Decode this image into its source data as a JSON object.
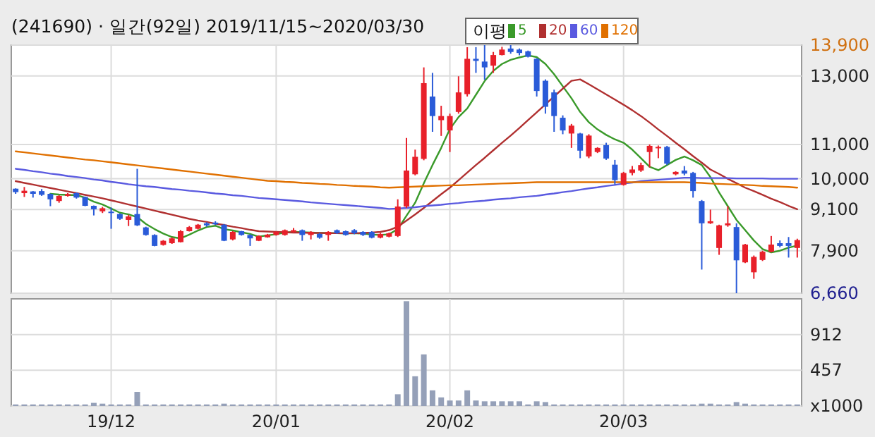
{
  "chart_data": [
    {
      "type": "candlestick",
      "title": "(241690) · 일간(92일) 2019/11/15~2020/03/30",
      "legend_title": "이평",
      "legend": "top",
      "grid": true,
      "tick_labels": "y",
      "categories": [
        null,
        null,
        null,
        null,
        null,
        null,
        null,
        null,
        null,
        null,
        null,
        null,
        null,
        null,
        null,
        null,
        null,
        null,
        null,
        null,
        null,
        null,
        null,
        null,
        null,
        null,
        null,
        null,
        null,
        null,
        null,
        null,
        null,
        null,
        null,
        null,
        null,
        null,
        null,
        null,
        null,
        null,
        null,
        null,
        null,
        null,
        null,
        null,
        null,
        null,
        null,
        null,
        null,
        null,
        null,
        null,
        null,
        null,
        null,
        null,
        null,
        null,
        null,
        null,
        null,
        null,
        null,
        null,
        null,
        null,
        null,
        null,
        null,
        null,
        null,
        null,
        null,
        null,
        null,
        null,
        null,
        null,
        null,
        null,
        null,
        null,
        null,
        null,
        null,
        null,
        null
      ],
      "ylim": [
        6660,
        13900
      ],
      "yticks": [
        {
          "value": 6660,
          "label": "6,660"
        },
        {
          "value": 7900,
          "label": "7,900"
        },
        {
          "value": 9100,
          "label": "9,100"
        },
        {
          "value": 10000,
          "label": "10,000"
        },
        {
          "value": 11000,
          "label": "11,000"
        },
        {
          "value": 13000,
          "label": "13,000"
        },
        {
          "value": 13900,
          "label": "13,900"
        }
      ],
      "ohlc": [
        [
          9710,
          9720,
          9560,
          9610
        ],
        [
          9580,
          9760,
          9470,
          9650
        ],
        [
          9630,
          9640,
          9450,
          9560
        ],
        [
          9640,
          9700,
          9500,
          9530
        ],
        [
          9560,
          9570,
          9200,
          9400
        ],
        [
          9350,
          9520,
          9300,
          9500
        ],
        [
          9500,
          9580,
          9480,
          9550
        ],
        [
          9580,
          9600,
          9420,
          9450
        ],
        [
          9470,
          9480,
          9200,
          9210
        ],
        [
          9210,
          9220,
          8930,
          9110
        ],
        [
          9050,
          9180,
          9000,
          9140
        ],
        [
          9040,
          9160,
          8540,
          9000
        ],
        [
          8970,
          8990,
          8800,
          8830
        ],
        [
          8800,
          8950,
          8620,
          8900
        ],
        [
          8970,
          10290,
          8620,
          8640
        ],
        [
          8580,
          8600,
          8340,
          8360
        ],
        [
          8360,
          8380,
          8030,
          8040
        ],
        [
          8070,
          8210,
          8050,
          8190
        ],
        [
          8120,
          8290,
          8100,
          8260
        ],
        [
          8150,
          8500,
          8140,
          8470
        ],
        [
          8470,
          8620,
          8460,
          8590
        ],
        [
          8540,
          8680,
          8520,
          8660
        ],
        [
          8700,
          8730,
          8600,
          8640
        ],
        [
          8720,
          8760,
          8650,
          8670
        ],
        [
          8660,
          8680,
          8180,
          8190
        ],
        [
          8230,
          8470,
          8200,
          8450
        ],
        [
          8470,
          8480,
          8340,
          8360
        ],
        [
          8360,
          8380,
          8040,
          8260
        ],
        [
          8190,
          8350,
          8180,
          8330
        ],
        [
          8290,
          8390,
          8280,
          8370
        ],
        [
          8360,
          8470,
          8340,
          8450
        ],
        [
          8360,
          8520,
          8340,
          8500
        ],
        [
          8450,
          8560,
          8430,
          8500
        ],
        [
          8500,
          8520,
          8190,
          8360
        ],
        [
          8360,
          8470,
          8230,
          8450
        ],
        [
          8390,
          8420,
          8250,
          8280
        ],
        [
          8360,
          8470,
          8190,
          8450
        ],
        [
          8500,
          8520,
          8390,
          8410
        ],
        [
          8470,
          8490,
          8340,
          8360
        ],
        [
          8500,
          8530,
          8380,
          8410
        ],
        [
          8450,
          8470,
          8330,
          8360
        ],
        [
          8450,
          8470,
          8260,
          8280
        ],
        [
          8280,
          8420,
          8260,
          8390
        ],
        [
          8310,
          8430,
          8290,
          8410
        ],
        [
          8330,
          9400,
          8300,
          9190
        ],
        [
          9190,
          11190,
          9150,
          10240
        ],
        [
          10130,
          10850,
          10100,
          10640
        ],
        [
          10580,
          13250,
          10540,
          12790
        ],
        [
          12400,
          13090,
          11370,
          11830
        ],
        [
          11710,
          12130,
          11250,
          11830
        ],
        [
          11410,
          11900,
          10780,
          11830
        ],
        [
          11950,
          12990,
          11900,
          12520
        ],
        [
          12470,
          13840,
          12400,
          13500
        ],
        [
          13500,
          13840,
          13090,
          13440
        ],
        [
          13420,
          13900,
          12890,
          13250
        ],
        [
          13300,
          13700,
          13090,
          13610
        ],
        [
          13610,
          13850,
          13600,
          13770
        ],
        [
          13800,
          13900,
          13650,
          13700
        ],
        [
          13770,
          13800,
          13600,
          13670
        ],
        [
          13720,
          13740,
          13540,
          13560
        ],
        [
          13500,
          13520,
          12400,
          12560
        ],
        [
          12860,
          12900,
          11900,
          12100
        ],
        [
          12520,
          12600,
          11370,
          11830
        ],
        [
          11780,
          11850,
          11300,
          11410
        ],
        [
          11320,
          11600,
          10900,
          11550
        ],
        [
          11320,
          11340,
          10600,
          10820
        ],
        [
          10650,
          11300,
          10600,
          11260
        ],
        [
          10780,
          10920,
          10750,
          10900
        ],
        [
          10980,
          11050,
          10550,
          10590
        ],
        [
          10410,
          10550,
          9830,
          9960
        ],
        [
          9820,
          10200,
          9800,
          10170
        ],
        [
          10170,
          10370,
          10100,
          10270
        ],
        [
          10240,
          10470,
          10200,
          10400
        ],
        [
          10780,
          11000,
          10330,
          10960
        ],
        [
          10900,
          10970,
          10600,
          10930
        ],
        [
          10930,
          10960,
          10400,
          10440
        ],
        [
          10130,
          10220,
          10100,
          10200
        ],
        [
          10240,
          10370,
          10100,
          10150
        ],
        [
          10170,
          10200,
          9450,
          9640
        ],
        [
          9350,
          9380,
          7350,
          8700
        ],
        [
          8700,
          9100,
          8680,
          8760
        ],
        [
          7980,
          8660,
          7780,
          8640
        ],
        [
          8640,
          9200,
          8600,
          8700
        ],
        [
          8590,
          8700,
          6660,
          7620
        ],
        [
          7560,
          8100,
          7540,
          8080
        ],
        [
          7270,
          7760,
          7080,
          7720
        ],
        [
          7630,
          7900,
          7600,
          7870
        ],
        [
          7870,
          8330,
          7850,
          8080
        ],
        [
          8120,
          8200,
          8000,
          8040
        ],
        [
          8120,
          8300,
          7700,
          8040
        ],
        [
          7980,
          8250,
          7700,
          8210
        ]
      ],
      "series": [
        {
          "name": "5",
          "type": "line",
          "color": "#3a9a2a",
          "values": [
            null,
            null,
            null,
            null,
            9560,
            9540,
            9530,
            9520,
            9450,
            9330,
            9250,
            9130,
            9010,
            8960,
            8880,
            8680,
            8530,
            8400,
            8300,
            8260,
            8370,
            8490,
            8590,
            8630,
            8530,
            8490,
            8440,
            8390,
            8310,
            8350,
            8380,
            8430,
            8450,
            8440,
            8430,
            8420,
            8420,
            8410,
            8400,
            8410,
            8400,
            8370,
            8360,
            8380,
            8530,
            8920,
            9300,
            9870,
            10400,
            10900,
            11450,
            11800,
            12050,
            12450,
            12850,
            13150,
            13350,
            13470,
            13540,
            13600,
            13550,
            13350,
            13050,
            12700,
            12350,
            11950,
            11650,
            11440,
            11280,
            11150,
            11050,
            10850,
            10600,
            10350,
            10250,
            10400,
            10550,
            10650,
            10540,
            10400,
            10050,
            9600,
            9200,
            8800,
            8500,
            8200,
            7950,
            7850,
            7900,
            7990,
            8050
          ]
        },
        {
          "name": "20",
          "type": "line",
          "color": "#b03030",
          "values": [
            9930,
            9880,
            9830,
            9780,
            9730,
            9680,
            9630,
            9580,
            9530,
            9480,
            9430,
            9370,
            9310,
            9250,
            9190,
            9130,
            9070,
            9010,
            8950,
            8890,
            8830,
            8780,
            8740,
            8690,
            8650,
            8600,
            8560,
            8510,
            8470,
            8460,
            8450,
            8440,
            8430,
            8430,
            8420,
            8420,
            8410,
            8410,
            8410,
            8410,
            8420,
            8430,
            8450,
            8500,
            8600,
            8780,
            8960,
            9150,
            9350,
            9550,
            9740,
            9960,
            10180,
            10400,
            10610,
            10830,
            11050,
            11260,
            11480,
            11710,
            11940,
            12170,
            12400,
            12630,
            12860,
            12900,
            12760,
            12610,
            12460,
            12310,
            12160,
            12000,
            11830,
            11640,
            11440,
            11250,
            11050,
            10860,
            10660,
            10470,
            10270,
            10140,
            10000,
            9870,
            9740,
            9640,
            9530,
            9420,
            9320,
            9210,
            9110
          ]
        },
        {
          "name": "60",
          "type": "line",
          "color": "#5a5ae0",
          "values": [
            10290,
            10260,
            10220,
            10190,
            10150,
            10120,
            10080,
            10050,
            10020,
            9980,
            9950,
            9910,
            9880,
            9840,
            9810,
            9780,
            9760,
            9730,
            9700,
            9680,
            9650,
            9630,
            9600,
            9570,
            9550,
            9520,
            9500,
            9470,
            9440,
            9420,
            9400,
            9380,
            9360,
            9340,
            9310,
            9290,
            9270,
            9250,
            9230,
            9210,
            9190,
            9170,
            9150,
            9120,
            9130,
            9150,
            9170,
            9200,
            9220,
            9240,
            9270,
            9290,
            9320,
            9340,
            9360,
            9390,
            9410,
            9430,
            9460,
            9480,
            9500,
            9540,
            9570,
            9610,
            9640,
            9680,
            9720,
            9750,
            9790,
            9820,
            9860,
            9890,
            9930,
            9950,
            9970,
            9990,
            10010,
            10030,
            10030,
            10020,
            10020,
            10020,
            10020,
            10010,
            10010,
            10010,
            10010,
            10000,
            10000,
            10000,
            10000
          ]
        },
        {
          "name": "120",
          "type": "line",
          "color": "#e07000",
          "values": [
            10800,
            10770,
            10740,
            10710,
            10680,
            10650,
            10620,
            10590,
            10560,
            10540,
            10510,
            10480,
            10450,
            10420,
            10390,
            10360,
            10330,
            10300,
            10270,
            10240,
            10210,
            10180,
            10150,
            10120,
            10090,
            10060,
            10030,
            10000,
            9970,
            9940,
            9930,
            9910,
            9900,
            9880,
            9870,
            9850,
            9840,
            9820,
            9810,
            9790,
            9780,
            9770,
            9750,
            9740,
            9750,
            9760,
            9770,
            9780,
            9790,
            9800,
            9810,
            9810,
            9820,
            9830,
            9840,
            9850,
            9860,
            9870,
            9880,
            9890,
            9900,
            9900,
            9900,
            9900,
            9900,
            9900,
            9900,
            9900,
            9900,
            9900,
            9900,
            9900,
            9900,
            9900,
            9900,
            9900,
            9900,
            9900,
            9890,
            9880,
            9860,
            9850,
            9840,
            9830,
            9820,
            9810,
            9790,
            9780,
            9770,
            9760,
            9740
          ]
        }
      ]
    },
    {
      "type": "bar",
      "grid": true,
      "color": "#95a0b8",
      "categories": [
        null,
        null,
        null,
        null,
        null,
        null,
        null,
        null,
        null,
        null,
        null,
        "19/12",
        null,
        null,
        null,
        null,
        null,
        null,
        null,
        null,
        null,
        null,
        null,
        null,
        null,
        null,
        null,
        null,
        null,
        null,
        "20/01",
        null,
        null,
        null,
        null,
        null,
        null,
        null,
        null,
        null,
        null,
        null,
        null,
        null,
        null,
        null,
        null,
        null,
        null,
        null,
        "20/02",
        null,
        null,
        null,
        null,
        null,
        null,
        null,
        null,
        null,
        null,
        null,
        null,
        null,
        null,
        null,
        null,
        null,
        null,
        null,
        "20/03",
        null,
        null,
        null,
        null,
        null,
        null,
        null,
        null,
        null,
        null,
        null,
        null,
        null,
        null,
        null,
        null,
        null,
        null,
        null,
        null
      ],
      "ylim": [
        0,
        1370
      ],
      "yticks": [
        {
          "value": 0,
          "label": "x1000"
        },
        457,
        912
      ],
      "values": [
        20,
        20,
        20,
        20,
        20,
        20,
        20,
        20,
        20,
        40,
        30,
        20,
        20,
        20,
        180,
        20,
        20,
        20,
        20,
        20,
        20,
        20,
        20,
        20,
        30,
        20,
        20,
        20,
        20,
        20,
        20,
        20,
        20,
        20,
        20,
        20,
        20,
        20,
        20,
        20,
        20,
        20,
        20,
        20,
        150,
        1340,
        380,
        660,
        200,
        110,
        70,
        70,
        200,
        70,
        60,
        60,
        60,
        60,
        60,
        20,
        60,
        50,
        20,
        20,
        20,
        20,
        20,
        20,
        20,
        20,
        20,
        20,
        20,
        20,
        20,
        20,
        20,
        20,
        20,
        30,
        30,
        20,
        20,
        50,
        30,
        20,
        20,
        20,
        20,
        20,
        20
      ]
    }
  ]
}
